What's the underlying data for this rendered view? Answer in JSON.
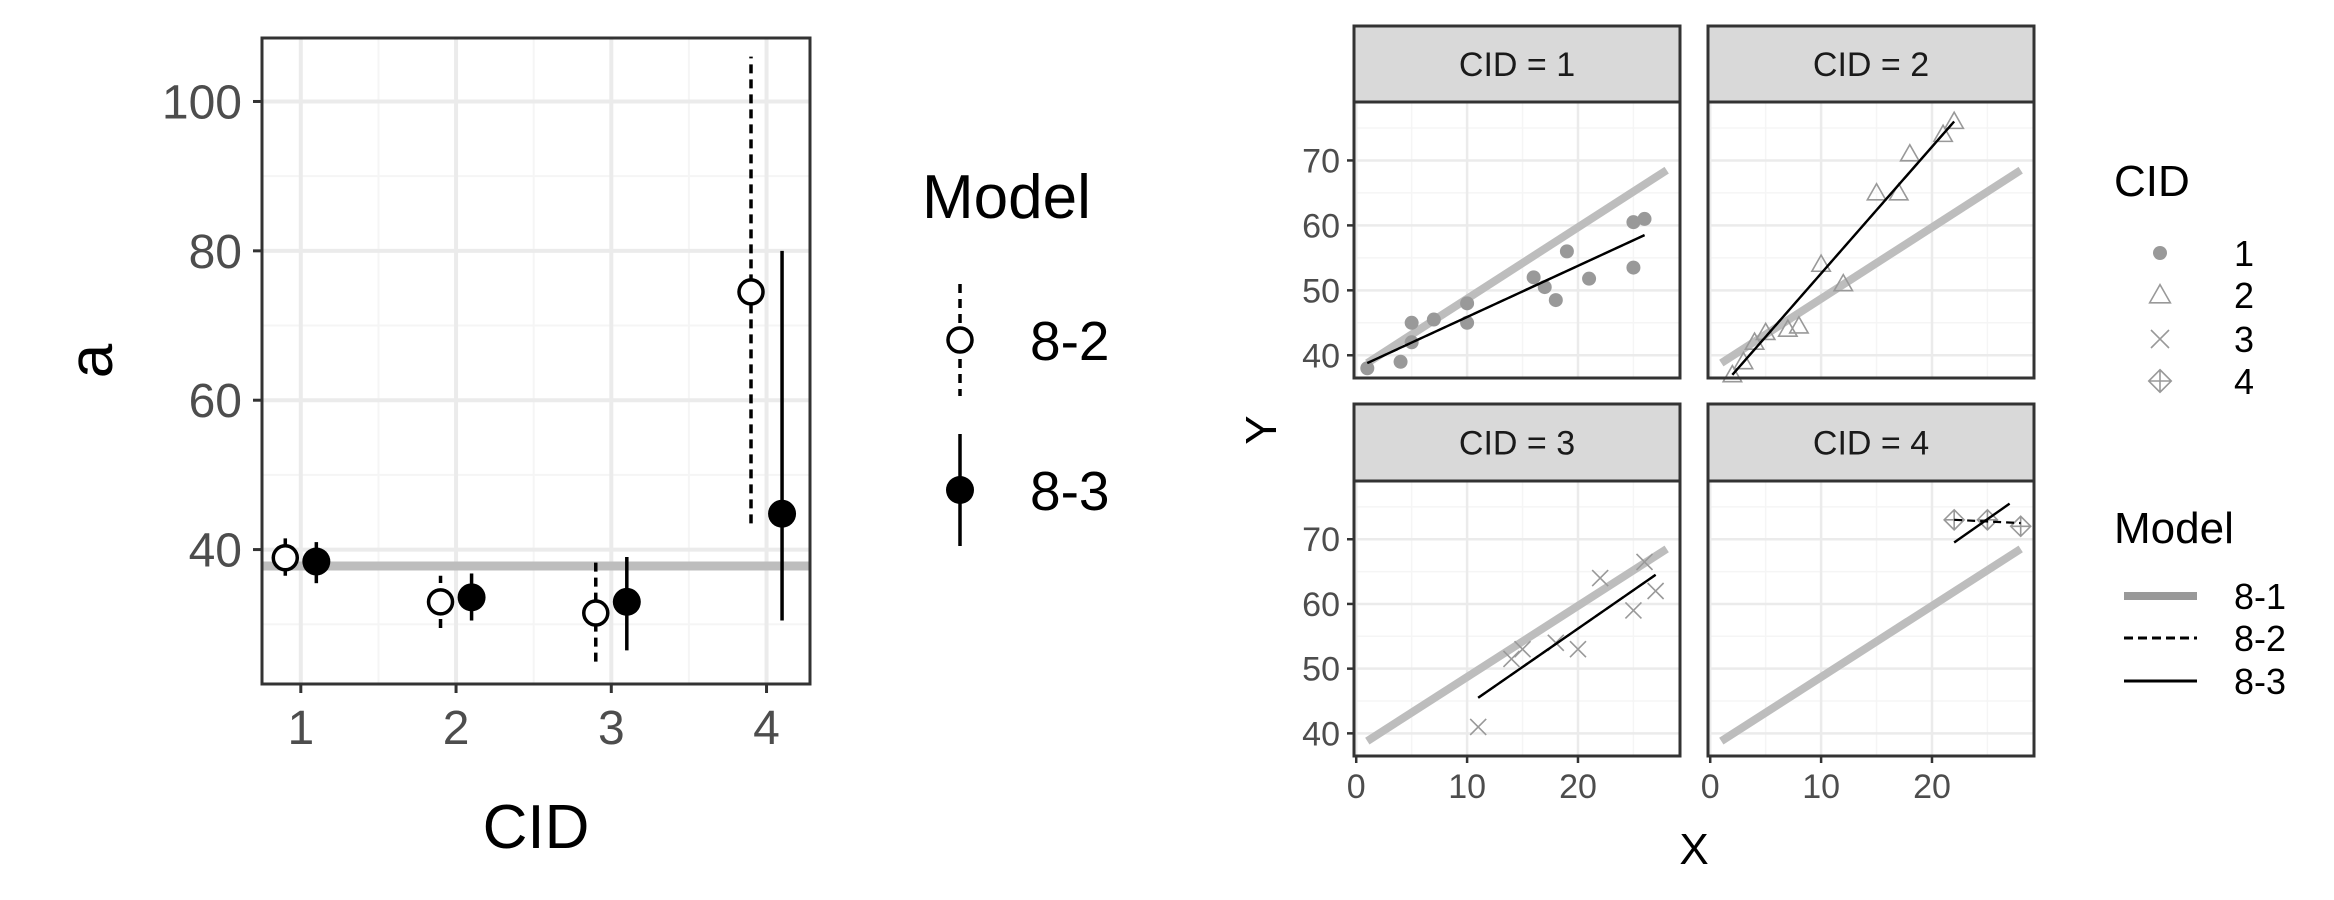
{
  "colors": {
    "panel_border": "#333333",
    "grid_major": "#ebebeb",
    "grid_minor": "#f5f5f5",
    "strip_fill": "#d9d9d9",
    "ref_line": "#bdbdbd",
    "ref_line_legend": "#999999",
    "points_gray": "#999999",
    "ink": "#000000"
  },
  "chart_data": [
    {
      "type": "pointrange",
      "xlabel": "CID",
      "ylabel": "a",
      "categories": [
        1,
        2,
        3,
        4
      ],
      "x_ticks": [
        "1",
        "2",
        "3",
        "4"
      ],
      "xlim": [
        0.75,
        4.28
      ],
      "y_ticks": [
        40,
        60,
        80,
        100
      ],
      "ylim": [
        22,
        108.5
      ],
      "reference_line": {
        "model": "8-1",
        "value": 37.8
      },
      "legend": {
        "title": "Model",
        "entries": [
          {
            "label": "8-2",
            "line": "dashed",
            "marker": "open-circle"
          },
          {
            "label": "8-3",
            "line": "solid",
            "marker": "filled-circle"
          }
        ]
      },
      "series": [
        {
          "name": "8-2",
          "marker": "open-circle",
          "line": "dashed",
          "offset": -0.1,
          "values": [
            38.9,
            33.0,
            31.5,
            74.5
          ],
          "lower": [
            36.5,
            29.5,
            25.0,
            43.5
          ],
          "upper": [
            41.5,
            36.5,
            38.5,
            106.0
          ]
        },
        {
          "name": "8-3",
          "marker": "filled-circle",
          "line": "solid",
          "offset": 0.1,
          "values": [
            38.4,
            33.6,
            33.0,
            44.8
          ],
          "lower": [
            35.5,
            30.5,
            26.5,
            30.5
          ],
          "upper": [
            41.0,
            36.8,
            39.0,
            80.0
          ]
        }
      ]
    },
    {
      "type": "scatter-facets",
      "xlabel": "X",
      "ylabel": "Y",
      "x_ticks": [
        0,
        10,
        20
      ],
      "xlim": [
        -0.2,
        29.2
      ],
      "y_ticks": [
        40,
        50,
        60,
        70
      ],
      "ylim": [
        36.5,
        79
      ],
      "reference_line": {
        "model": "8-1",
        "from": [
          1,
          38.8
        ],
        "to": [
          28,
          68.5
        ]
      },
      "legend_cid": {
        "title": "CID",
        "entries": [
          {
            "label": "1",
            "shape": "filled-circle"
          },
          {
            "label": "2",
            "shape": "triangle"
          },
          {
            "label": "3",
            "shape": "cross"
          },
          {
            "label": "4",
            "shape": "diamond-plus"
          }
        ]
      },
      "legend_model": {
        "title": "Model",
        "entries": [
          {
            "label": "8-1",
            "line": "thick-gray"
          },
          {
            "label": "8-2",
            "line": "dashed"
          },
          {
            "label": "8-3",
            "line": "solid"
          }
        ]
      },
      "facets": [
        {
          "strip": "CID = 1",
          "shape": "filled-circle",
          "points": [
            [
              1,
              38
            ],
            [
              4,
              39
            ],
            [
              5,
              42
            ],
            [
              5,
              45
            ],
            [
              7,
              45.5
            ],
            [
              10,
              45
            ],
            [
              10,
              48
            ],
            [
              16,
              52
            ],
            [
              17,
              50.5
            ],
            [
              18,
              48.5
            ],
            [
              19,
              56
            ],
            [
              21,
              51.8
            ],
            [
              25,
              53.5
            ],
            [
              25,
              60.5
            ],
            [
              26,
              61
            ]
          ],
          "fit_82": {
            "from": [
              1,
              38.8
            ],
            "to": [
              26,
              58.5
            ]
          },
          "fit_83": {
            "from": [
              1,
              38.8
            ],
            "to": [
              26,
              58.5
            ]
          }
        },
        {
          "strip": "CID = 2",
          "shape": "triangle",
          "points": [
            [
              2,
              37
            ],
            [
              3,
              39
            ],
            [
              4,
              42
            ],
            [
              5,
              43.5
            ],
            [
              7,
              44
            ],
            [
              8,
              44.5
            ],
            [
              10,
              54
            ],
            [
              12,
              51
            ],
            [
              15,
              65
            ],
            [
              17,
              65
            ],
            [
              18,
              71
            ],
            [
              21,
              74
            ],
            [
              22,
              76
            ]
          ],
          "fit_82": {
            "from": [
              2,
              37
            ],
            "to": [
              22,
              76
            ]
          },
          "fit_83": {
            "from": [
              2,
              37
            ],
            "to": [
              22,
              76
            ]
          }
        },
        {
          "strip": "CID = 3",
          "shape": "cross",
          "points": [
            [
              11,
              41
            ],
            [
              14,
              51.5
            ],
            [
              15,
              53
            ],
            [
              18,
              54
            ],
            [
              20,
              53
            ],
            [
              22,
              64
            ],
            [
              25,
              59
            ],
            [
              26,
              66.5
            ],
            [
              27,
              62
            ]
          ],
          "fit_82": {
            "from": [
              11,
              45.5
            ],
            "to": [
              27,
              64.5
            ]
          },
          "fit_83": {
            "from": [
              11,
              45.5
            ],
            "to": [
              27,
              64.5
            ]
          }
        },
        {
          "strip": "CID = 4",
          "shape": "diamond-plus",
          "points": [
            [
              22,
              73
            ],
            [
              25,
              73
            ],
            [
              28,
              72
            ]
          ],
          "fit_82": {
            "from": [
              22,
              73
            ],
            "to": [
              28,
              72.5
            ]
          },
          "fit_83": {
            "from": [
              22,
              69.5
            ],
            "to": [
              27,
              75.5
            ]
          }
        }
      ]
    }
  ]
}
